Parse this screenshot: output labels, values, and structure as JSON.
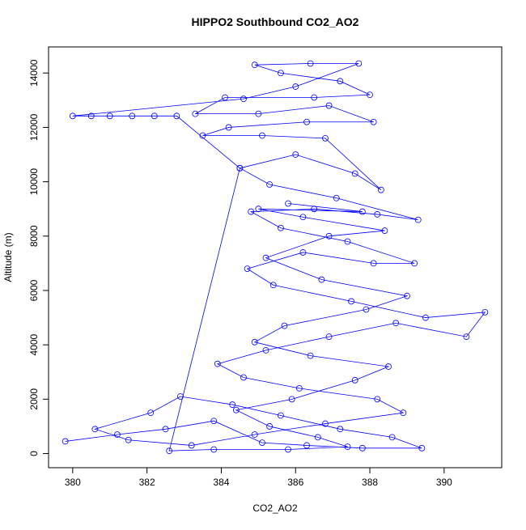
{
  "chart_data": {
    "type": "scatter",
    "title": "HIPPO2 Southbound CO2_AO2",
    "x_label": "CO2_AO2",
    "y_label": "Altitude (m)",
    "color": "#0000ff",
    "connect_points": true,
    "xlim": [
      379.35,
      391.55
    ],
    "ylim": [
      -520,
      14960
    ],
    "xticks": [
      380,
      382,
      384,
      386,
      388,
      390
    ],
    "yticks": [
      0,
      2000,
      4000,
      6000,
      8000,
      10000,
      12000,
      14000
    ],
    "x": [
      379.8,
      381.2,
      382.5,
      383.8,
      385.1,
      386.3,
      387.8,
      389.4,
      388.6,
      387.2,
      385.6,
      384.3,
      382.9,
      382.1,
      380.6,
      381.5,
      383.2,
      384.9,
      386.8,
      388.9,
      388.2,
      386.1,
      384.6,
      383.9,
      385.2,
      386.9,
      388.7,
      390.6,
      391.1,
      389.5,
      387.5,
      385.4,
      384.7,
      386.2,
      388.1,
      389.2,
      387.4,
      385.6,
      384.8,
      386.5,
      388.2,
      389.3,
      387.1,
      385.3,
      384.5,
      386.0,
      387.6,
      388.3,
      386.8,
      385.1,
      383.5,
      384.2,
      386.3,
      388.1,
      386.9,
      385.0,
      383.3,
      384.1,
      386.5,
      388.0,
      387.2,
      385.6,
      384.9,
      386.4,
      387.7,
      386.0,
      384.6,
      380.0,
      380.5,
      381.0,
      381.6,
      382.2,
      382.8,
      384.5,
      382.6,
      383.8,
      385.8,
      387.4,
      386.6,
      385.3,
      384.4,
      385.9,
      387.6,
      388.5,
      386.4,
      384.9,
      385.7,
      387.9,
      389.0,
      386.7,
      385.2,
      386.9,
      388.4,
      386.2,
      385.0,
      387.8,
      385.8
    ],
    "values": [
      450,
      700,
      900,
      1200,
      400,
      300,
      200,
      200,
      600,
      900,
      1400,
      1800,
      2100,
      1500,
      900,
      500,
      300,
      700,
      1100,
      1500,
      2000,
      2400,
      2800,
      3300,
      3800,
      4300,
      4800,
      4300,
      5200,
      5000,
      5600,
      6200,
      6800,
      7400,
      7000,
      7000,
      7800,
      8300,
      8900,
      9000,
      8800,
      8600,
      9400,
      9900,
      10500,
      11000,
      10300,
      9700,
      11600,
      11700,
      11700,
      12000,
      12200,
      12200,
      12800,
      12500,
      12500,
      13100,
      13100,
      13200,
      13700,
      14000,
      14300,
      14350,
      14350,
      13500,
      13050,
      12420,
      12420,
      12420,
      12420,
      12420,
      12420,
      10500,
      100,
      150,
      150,
      250,
      600,
      1000,
      1600,
      2000,
      2700,
      3200,
      3600,
      4100,
      4700,
      5300,
      5800,
      6400,
      7200,
      8000,
      8200,
      8700,
      9000,
      8900,
      9200
    ]
  }
}
